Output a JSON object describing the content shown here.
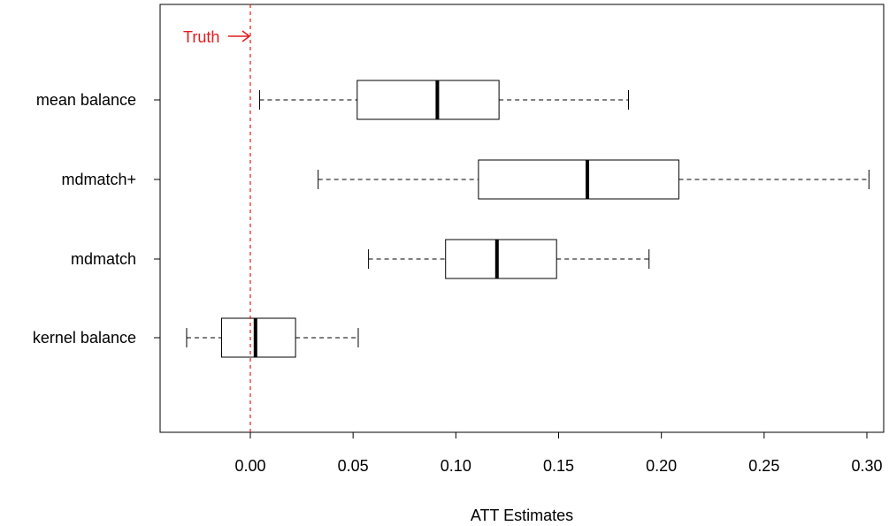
{
  "chart_data": {
    "type": "boxplot",
    "orientation": "horizontal",
    "title": "",
    "xlabel": "ATT Estimates",
    "ylabel": "",
    "xlim": [
      -0.045,
      0.305
    ],
    "x_ticks": [
      0.0,
      0.05,
      0.1,
      0.15,
      0.2,
      0.25,
      0.3
    ],
    "x_tick_labels": [
      "0.00",
      "0.05",
      "0.10",
      "0.15",
      "0.20",
      "0.25",
      "0.30"
    ],
    "grid": false,
    "categories": [
      "mean balance",
      "mdmatch+",
      "mdmatch",
      "kernel balance"
    ],
    "boxes": [
      {
        "label": "mean balance",
        "whisker_low": 0.0045,
        "q1": 0.052,
        "median": 0.091,
        "q3": 0.121,
        "whisker_high": 0.184
      },
      {
        "label": "mdmatch+",
        "whisker_low": 0.033,
        "q1": 0.111,
        "median": 0.164,
        "q3": 0.2085,
        "whisker_high": 0.301
      },
      {
        "label": "mdmatch",
        "whisker_low": 0.0575,
        "q1": 0.095,
        "median": 0.12,
        "q3": 0.149,
        "whisker_high": 0.194
      },
      {
        "label": "kernel balance",
        "whisker_low": -0.031,
        "q1": -0.014,
        "median": 0.0025,
        "q3": 0.022,
        "whisker_high": 0.0525
      }
    ],
    "reference_line": {
      "value": 0.0,
      "label": "Truth",
      "color": "#e41a1c",
      "style": "dashed"
    }
  }
}
